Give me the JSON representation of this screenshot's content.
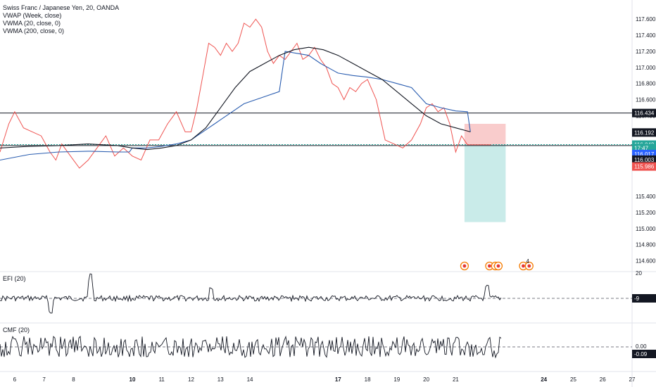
{
  "chart_data": {
    "type": "line",
    "title": "Swiss Franc / Japanese Yen, 20, OANDA",
    "indicators": [
      "VWAP (Week, close)",
      "VWMA (20, close, 0)",
      "VWMA (200, close, 0)"
    ],
    "price_axis": {
      "ylim": [
        114.5,
        117.75
      ],
      "ticks": [
        117.6,
        117.4,
        117.2,
        117.0,
        116.8,
        116.6,
        116.4,
        116.2,
        115.8,
        115.4,
        115.2,
        115.0,
        114.8,
        114.6
      ],
      "tick_labels": [
        "117.600",
        "117.400",
        "117.200",
        "117.000",
        "116.800",
        "116.600",
        "116.400",
        "116.200",
        "115.800",
        "115.400",
        "115.200",
        "115.000",
        "114.800",
        "114.600"
      ]
    },
    "x_axis": {
      "xlim": [
        5.5,
        27.0
      ],
      "ticks": [
        6,
        7,
        8,
        10,
        11,
        12,
        13,
        14,
        17,
        18,
        19,
        20,
        21,
        24,
        25,
        26,
        27
      ],
      "tick_labels": [
        "6",
        "7",
        "8",
        "10",
        "11",
        "12",
        "13",
        "14",
        "17",
        "18",
        "19",
        "20",
        "21",
        "24",
        "25",
        "26",
        "27"
      ],
      "bold": [
        "10",
        "17",
        "24"
      ]
    },
    "series": [
      {
        "name": "CHF/JPY close",
        "x": [
          5.5,
          5.8,
          6.0,
          6.3,
          6.6,
          6.9,
          7.2,
          7.4,
          7.6,
          7.9,
          8.2,
          8.5,
          8.8,
          9.1,
          9.4,
          9.7,
          10.0,
          10.3,
          10.6,
          10.9,
          11.2,
          11.5,
          11.8,
          12.0,
          12.2,
          12.4,
          12.6,
          12.8,
          13.0,
          13.2,
          13.4,
          13.6,
          13.8,
          14.0,
          14.2,
          14.4,
          14.6,
          14.8,
          15.0,
          15.2,
          15.4,
          15.6,
          15.8,
          16.0,
          16.2,
          16.4,
          16.6,
          16.8,
          17.0,
          17.2,
          17.4,
          17.6,
          17.8,
          18.0,
          18.3,
          18.6,
          18.9,
          19.2,
          19.5,
          19.8,
          20.0,
          20.2,
          20.4,
          20.6,
          20.8,
          21.0,
          21.2,
          21.4,
          21.6,
          21.8,
          22.0,
          22.2
        ],
        "values": [
          115.95,
          116.3,
          116.45,
          116.25,
          116.2,
          116.15,
          115.95,
          115.85,
          116.05,
          115.9,
          115.75,
          115.85,
          116.0,
          116.15,
          115.9,
          116.0,
          115.9,
          115.85,
          116.1,
          116.1,
          116.3,
          116.45,
          116.2,
          116.2,
          116.5,
          116.9,
          117.3,
          117.25,
          117.15,
          117.3,
          117.2,
          117.3,
          117.55,
          117.5,
          117.6,
          117.5,
          117.2,
          117.05,
          117.15,
          117.1,
          117.2,
          117.3,
          117.1,
          117.15,
          117.25,
          117.1,
          117.0,
          116.8,
          116.75,
          116.6,
          116.75,
          116.7,
          116.8,
          116.85,
          116.6,
          116.1,
          116.05,
          116.0,
          116.1,
          116.3,
          116.5,
          116.55,
          116.45,
          116.5,
          116.3,
          115.95,
          116.15,
          116.04,
          116.04,
          116.04,
          116.04,
          116.04
        ]
      },
      {
        "name": "VWAP (Week, close)",
        "x": [
          5.5,
          6.5,
          7.5,
          8.5,
          9.5,
          9.9,
          10.0,
          10.5,
          11.0,
          11.5,
          12.0,
          12.2,
          12.4,
          12.6,
          12.8,
          13.0,
          13.4,
          13.8,
          14.2,
          14.6,
          15.0,
          15.2,
          16.0,
          16.4,
          16.8,
          17.0,
          17.5,
          18.0,
          18.5,
          19.0,
          19.5,
          20.0,
          20.5,
          21.0,
          21.4,
          21.5
        ],
        "values": [
          115.85,
          115.92,
          115.95,
          115.96,
          115.95,
          115.95,
          116.0,
          116.0,
          116.02,
          116.05,
          116.1,
          116.15,
          116.2,
          116.25,
          116.3,
          116.35,
          116.45,
          116.55,
          116.6,
          116.65,
          116.7,
          117.2,
          117.15,
          117.05,
          116.97,
          116.93,
          116.9,
          116.88,
          116.85,
          116.8,
          116.75,
          116.55,
          116.5,
          116.46,
          116.45,
          116.2
        ]
      },
      {
        "name": "VWMA (200, close, 0)",
        "x": [
          5.5,
          6.5,
          7.5,
          8.5,
          9.5,
          10.0,
          10.5,
          11.0,
          11.5,
          12.0,
          12.5,
          13.0,
          13.5,
          14.0,
          14.5,
          15.0,
          15.5,
          16.0,
          16.5,
          17.0,
          17.5,
          18.0,
          18.5,
          19.0,
          19.5,
          20.0,
          20.5,
          21.0,
          21.5
        ],
        "values": [
          116.0,
          116.02,
          116.03,
          116.05,
          116.03,
          116.0,
          115.98,
          116.0,
          116.03,
          116.1,
          116.25,
          116.5,
          116.75,
          116.95,
          117.05,
          117.15,
          117.22,
          117.25,
          117.22,
          117.15,
          117.05,
          116.95,
          116.85,
          116.7,
          116.55,
          116.4,
          116.3,
          116.25,
          116.2
        ]
      }
    ],
    "price_tags": [
      {
        "value": 116.434,
        "label": "116.434",
        "color": "#131722"
      },
      {
        "value": 116.192,
        "label": "116.192",
        "color": "#131722"
      },
      {
        "value": 116.042,
        "label": "116.042",
        "color": "#26a69a"
      },
      {
        "value": 116.0,
        "label": "17:47",
        "color": "#26a69a"
      },
      {
        "value": 115.925,
        "label": "116.017",
        "color": "#2962ff"
      },
      {
        "value": 115.855,
        "label": "116.003",
        "color": "#131722"
      },
      {
        "value": 115.77,
        "label": "115.986",
        "color": "#ef5350"
      }
    ],
    "position": {
      "entry": 116.042,
      "stop": 116.3,
      "target": 115.08,
      "x_start": 21.3,
      "x_end": 22.7
    },
    "horizontal_lines": [
      116.434,
      116.03
    ],
    "annotations": {
      "event_x": [
        21.3,
        22.15,
        22.35,
        22.45,
        23.3,
        23.5
      ],
      "event_badge_text": "4"
    },
    "panes": [
      {
        "name": "EFI (20)",
        "ticks": [
          "20",
          "-9"
        ],
        "last_label": "-9"
      },
      {
        "name": "CMF (20)",
        "ticks": [
          "0.00"
        ],
        "last_label": "-0.09"
      }
    ]
  }
}
